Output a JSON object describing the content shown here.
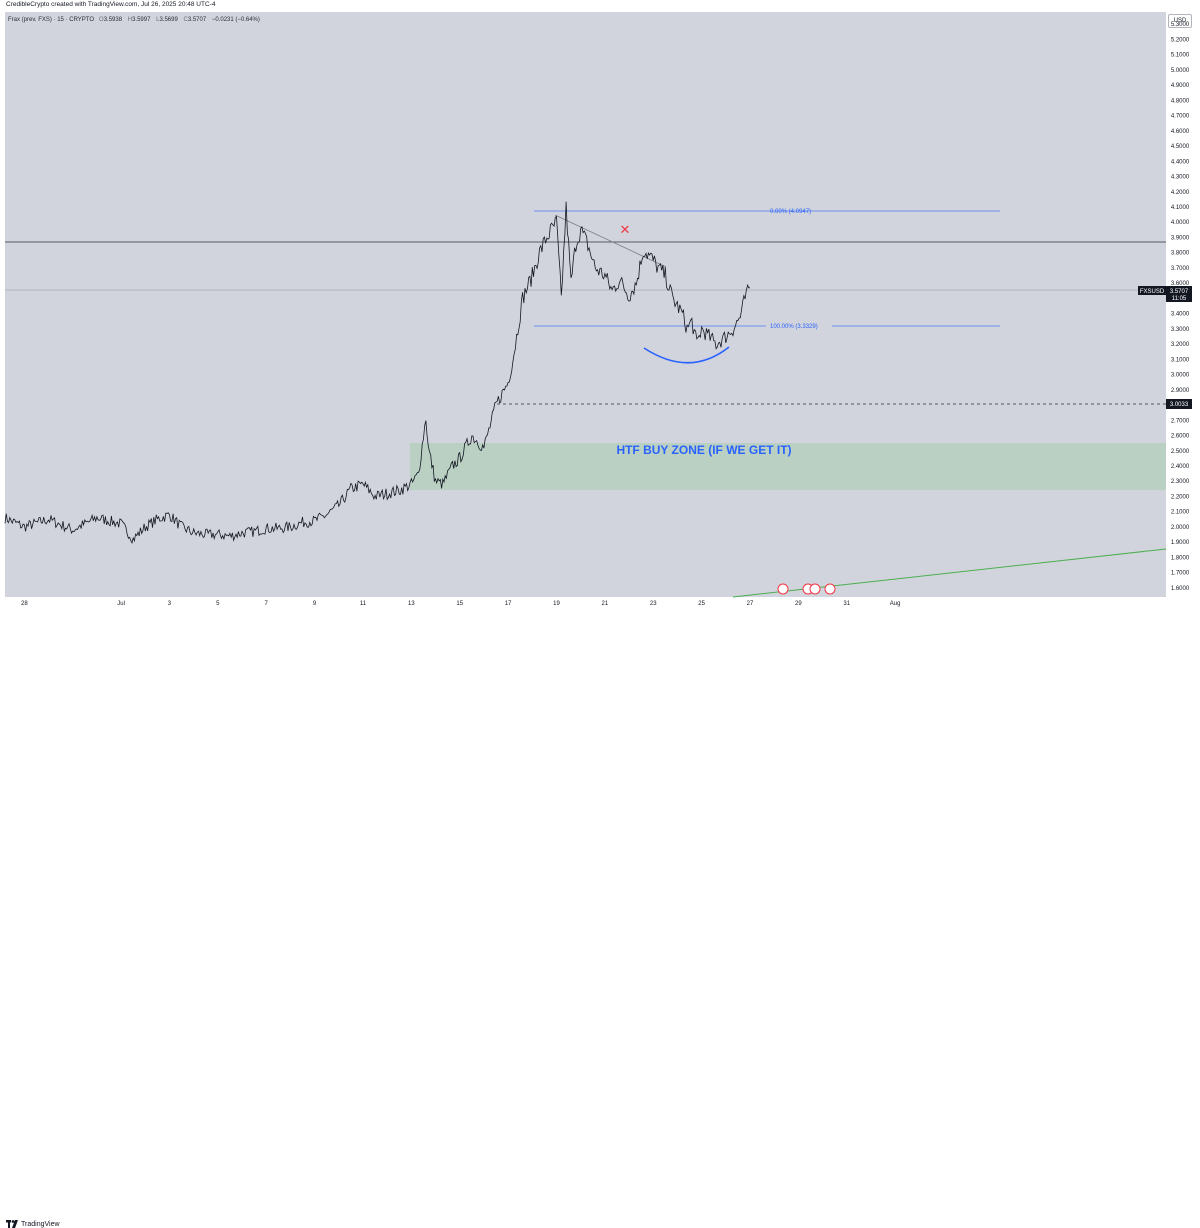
{
  "header": {
    "credit": "CredibleCrypto created with TradingView.com, Jul 26, 2025 20:48 UTC-4"
  },
  "legend": {
    "symbol": "Frax (prev. FXS) · 15 · CRYPTO",
    "open_label": "O",
    "open": "3.5938",
    "high_label": "H",
    "high": "3.5997",
    "low_label": "L",
    "low": "3.5699",
    "close_label": "C",
    "close": "3.5707",
    "change": "−0.0231 (−0.64%)"
  },
  "currency_button": "USD",
  "footer": {
    "brand": "TradingView"
  },
  "annotations": {
    "fib_top": "0.00% (4.0947)",
    "fib_bottom": "100.00% (3.3329)",
    "zone_label": "HTF BUY ZONE (IF WE GET IT)",
    "cross_mark": "✕"
  },
  "price_badges": {
    "ticker": "FXSUSD",
    "current_price": "3.5707",
    "countdown": "11:05",
    "level_price": "3.0033"
  },
  "colors": {
    "plot_bg": "#d1d4dc",
    "price_line": "#131722",
    "fib": "#2962ff",
    "zone_fill": "#b9d0c3",
    "trend_green": "#4caf50",
    "cross": "#f23645",
    "zone_text": "#2962ff"
  },
  "chart_data": {
    "type": "line",
    "title": "",
    "y_ticks": [
      "5.3000",
      "5.2000",
      "5.1000",
      "5.0000",
      "4.9000",
      "4.8000",
      "4.7000",
      "4.6000",
      "4.5000",
      "4.4000",
      "4.3000",
      "4.2000",
      "4.1000",
      "4.0000",
      "3.9000",
      "3.8000",
      "3.7000",
      "3.6000",
      "3.5000",
      "3.4000",
      "3.3000",
      "3.2000",
      "3.1000",
      "3.0000",
      "2.9000",
      "2.8000",
      "2.7000",
      "2.6000",
      "2.5000",
      "2.4000",
      "2.3000",
      "2.2000",
      "2.1000",
      "2.0000",
      "1.9000",
      "1.8000",
      "1.7000",
      "1.6000"
    ],
    "x_ticks": [
      "28",
      "Jul",
      "3",
      "5",
      "7",
      "9",
      "11",
      "13",
      "15",
      "17",
      "19",
      "21",
      "23",
      "25",
      "27",
      "29",
      "31",
      "Aug"
    ],
    "x_tick_days": [
      -3,
      1,
      3,
      5,
      7,
      9,
      11,
      13,
      15,
      17,
      19,
      21,
      23,
      25,
      27,
      29,
      31,
      33
    ],
    "ylim": [
      1.54,
      5.38
    ],
    "xlim": [
      -3.8,
      44.2
    ],
    "series": [
      {
        "x": [
          -3.8,
          -3,
          -2,
          -1,
          0,
          1,
          1.5,
          2,
          2.5,
          3,
          3.5,
          4,
          4.5,
          5,
          5.5,
          6,
          6.5,
          7,
          7.5,
          8,
          8.5,
          9,
          9.5,
          10,
          10.5,
          11,
          11.5,
          12,
          12.5,
          13,
          13.3,
          13.6,
          13.7,
          14,
          14.3,
          14.7,
          15,
          15.5,
          16,
          16.5,
          17,
          17.2,
          17.4,
          17.6,
          18,
          18.3,
          18.6,
          19,
          19.2,
          19.4,
          19.6,
          19.8,
          20,
          20.3,
          20.6,
          21,
          21.3,
          21.6,
          22,
          22.3,
          22.6,
          23,
          23.2,
          23.5,
          23.8,
          24,
          24.2,
          24.4,
          24.6,
          24.8,
          25,
          25.3,
          25.6,
          26,
          26.3,
          26.6,
          26.8,
          27
        ],
        "y": [
          2.06,
          2.0,
          2.05,
          1.98,
          2.06,
          2.02,
          1.92,
          2.0,
          2.05,
          2.08,
          2.0,
          1.96,
          1.95,
          1.95,
          1.94,
          1.96,
          1.97,
          1.99,
          1.99,
          2.0,
          2.03,
          2.04,
          2.08,
          2.14,
          2.25,
          2.28,
          2.2,
          2.22,
          2.24,
          2.28,
          2.35,
          2.72,
          2.52,
          2.3,
          2.28,
          2.4,
          2.45,
          2.6,
          2.52,
          2.8,
          2.95,
          3.1,
          3.3,
          3.5,
          3.65,
          3.8,
          3.9,
          4.0,
          3.5,
          4.09,
          3.6,
          3.86,
          3.95,
          3.85,
          3.7,
          3.65,
          3.55,
          3.62,
          3.52,
          3.6,
          3.82,
          3.75,
          3.7,
          3.65,
          3.5,
          3.45,
          3.4,
          3.3,
          3.35,
          3.2,
          3.3,
          3.25,
          3.2,
          3.25,
          3.3,
          3.38,
          3.5,
          3.57
        ]
      }
    ]
  }
}
